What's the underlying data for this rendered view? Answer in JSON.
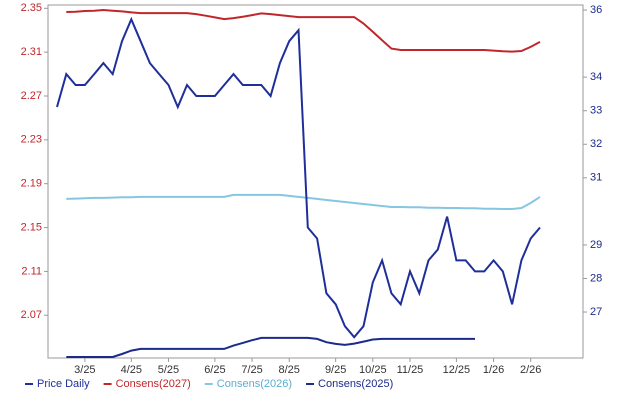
{
  "chart_data": {
    "type": "line",
    "categories": [
      null,
      null,
      null,
      "3/25",
      null,
      null,
      null,
      null,
      "4/25",
      null,
      null,
      null,
      "5/25",
      null,
      null,
      null,
      null,
      "6/25",
      null,
      null,
      null,
      "7/25",
      null,
      null,
      null,
      "8/25",
      null,
      null,
      null,
      null,
      "9/25",
      null,
      null,
      null,
      "10/25",
      null,
      null,
      null,
      "11/25",
      null,
      null,
      null,
      null,
      "12/25",
      null,
      null,
      null,
      "1/26",
      null,
      null,
      null,
      "2/26",
      null
    ],
    "ylim": [
      2.031,
      2.353
    ],
    "yticks": [
      2.07,
      2.11,
      2.15,
      2.19,
      2.23,
      2.27,
      2.31,
      2.35
    ],
    "y2lim": [
      25.63,
      36.15
    ],
    "y2ticks": [
      27,
      28,
      29,
      31,
      32,
      33,
      34,
      36
    ],
    "series": [
      {
        "name": "Price Daily",
        "color": "#1f2f9a",
        "values": [
          2.26,
          2.29,
          2.28,
          2.28,
          2.29,
          2.3,
          2.29,
          2.32,
          2.34,
          2.32,
          2.3,
          2.29,
          2.28,
          2.26,
          2.28,
          2.27,
          2.27,
          2.27,
          2.28,
          2.29,
          2.28,
          2.28,
          2.28,
          2.27,
          2.3,
          2.32,
          2.33,
          2.15,
          2.14,
          2.09,
          2.08,
          2.06,
          2.05,
          2.06,
          2.1,
          2.12,
          2.09,
          2.08,
          2.11,
          2.09,
          2.12,
          2.13,
          2.16,
          2.12,
          2.12,
          2.11,
          2.11,
          2.12,
          2.11,
          2.08,
          2.12,
          2.14,
          2.15
        ]
      },
      {
        "name": "Consens(2027)",
        "color": "#c0272d",
        "axis": "y2",
        "values": [
          null,
          35.94,
          35.95,
          35.97,
          35.98,
          36.0,
          35.98,
          35.96,
          35.93,
          35.91,
          35.91,
          35.91,
          35.91,
          35.91,
          35.91,
          35.88,
          35.83,
          35.78,
          35.73,
          35.76,
          35.8,
          35.85,
          35.9,
          35.88,
          35.85,
          35.82,
          35.79,
          35.79,
          35.79,
          35.79,
          35.79,
          35.79,
          35.79,
          35.6,
          35.35,
          35.1,
          34.85,
          34.81,
          34.81,
          34.81,
          34.81,
          34.81,
          34.81,
          34.81,
          34.81,
          34.81,
          34.81,
          34.79,
          34.77,
          34.76,
          34.78,
          34.9,
          35.05
        ]
      },
      {
        "name": "Consens(2026)",
        "color": "#87c6e0",
        "axis": "y2",
        "values": [
          null,
          30.37,
          30.38,
          30.39,
          30.4,
          30.4,
          30.41,
          30.42,
          30.42,
          30.43,
          30.43,
          30.43,
          30.43,
          30.43,
          30.43,
          30.43,
          30.43,
          30.43,
          30.43,
          30.49,
          30.49,
          30.49,
          30.49,
          30.49,
          30.49,
          30.46,
          30.43,
          30.4,
          30.37,
          30.34,
          30.31,
          30.28,
          30.25,
          30.22,
          30.19,
          30.16,
          30.13,
          30.13,
          30.12,
          30.12,
          30.11,
          30.11,
          30.1,
          30.1,
          30.09,
          30.09,
          30.08,
          30.08,
          30.07,
          30.07,
          30.1,
          30.25,
          30.43
        ]
      },
      {
        "name": "Consens(2025)",
        "color": "#1c2a8c",
        "axis": "y2",
        "values": [
          null,
          25.66,
          25.66,
          25.66,
          25.66,
          25.66,
          25.66,
          25.75,
          25.85,
          25.9,
          25.9,
          25.9,
          25.9,
          25.9,
          25.9,
          25.9,
          25.9,
          25.9,
          25.9,
          26.0,
          26.08,
          26.16,
          26.23,
          26.23,
          26.23,
          26.23,
          26.23,
          26.23,
          26.2,
          26.1,
          26.05,
          26.02,
          26.06,
          26.12,
          26.18,
          26.2,
          26.2,
          26.2,
          26.2,
          26.2,
          26.2,
          26.2,
          26.2,
          26.2,
          26.2,
          26.2,
          null,
          null,
          null,
          null,
          null,
          null,
          null
        ]
      }
    ]
  }
}
